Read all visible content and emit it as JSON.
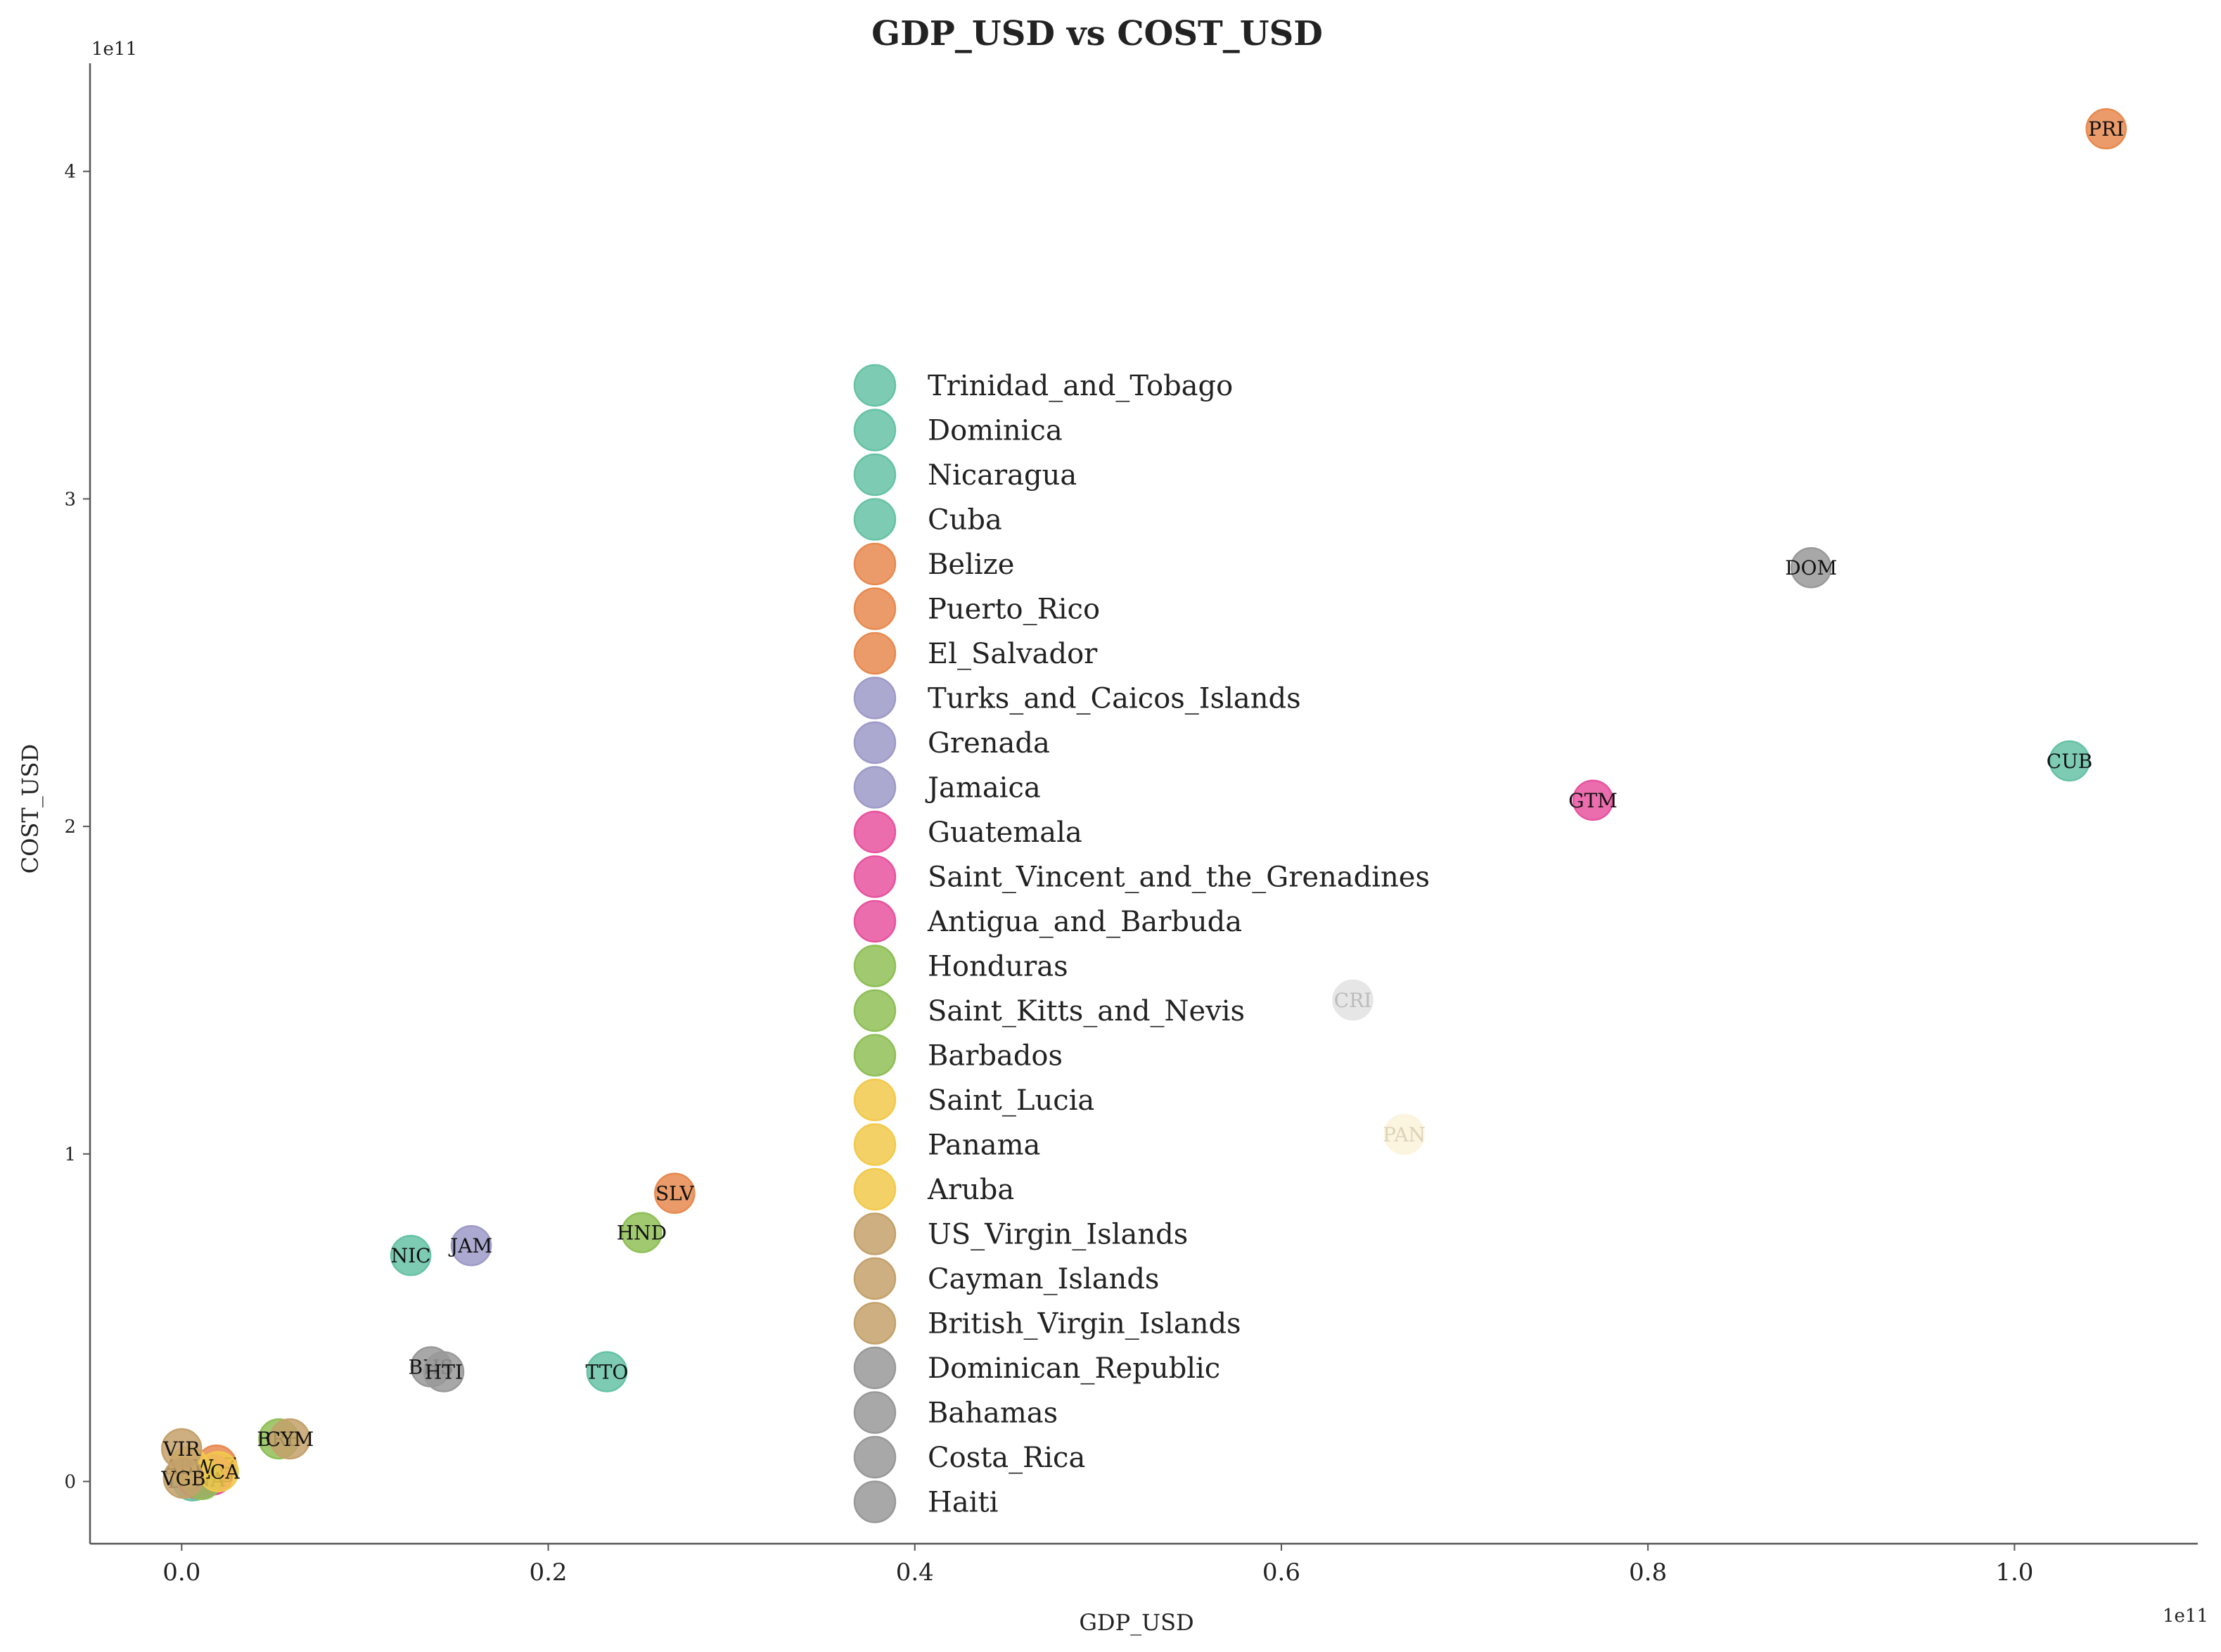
{
  "chart_data": {
    "type": "scatter",
    "title": "GDP_USD vs COST_USD",
    "xlabel": "GDP_USD",
    "ylabel": "COST_USD",
    "x_offset_label": "1e11",
    "y_offset_label": "1e11",
    "xlim": [
      -0.05,
      1.1
    ],
    "ylim": [
      -0.19,
      4.33
    ],
    "xticks": [
      0.0,
      0.2,
      0.4,
      0.6,
      0.8,
      1.0
    ],
    "xtick_labels": [
      "0.0",
      "0.2",
      "0.4",
      "0.6",
      "0.8",
      "1.0"
    ],
    "yticks": [
      0,
      1,
      2,
      3,
      4
    ],
    "ytick_labels": [
      "0",
      "1",
      "2",
      "3",
      "4"
    ],
    "grid": false,
    "legend_position": "center",
    "series": [
      {
        "name": "Trinidad_and_Tobago",
        "code": "TTO",
        "color": "#66c2a5",
        "x": 0.232,
        "y": 0.335
      },
      {
        "name": "Dominica",
        "code": "DMA",
        "color": "#66c2a5",
        "x": 0.006,
        "y": 0.002
      },
      {
        "name": "Nicaragua",
        "code": "NIC",
        "color": "#66c2a5",
        "x": 0.125,
        "y": 0.69
      },
      {
        "name": "Cuba",
        "code": "CUB",
        "color": "#66c2a5",
        "x": 1.03,
        "y": 2.2
      },
      {
        "name": "Belize",
        "code": "BLZ",
        "color": "#e8894f",
        "x": 0.019,
        "y": 0.05
      },
      {
        "name": "Puerto_Rico",
        "code": "PRI",
        "color": "#e8894f",
        "x": 1.05,
        "y": 4.13
      },
      {
        "name": "El_Salvador",
        "code": "SLV",
        "color": "#e8894f",
        "x": 0.269,
        "y": 0.88
      },
      {
        "name": "Turks_and_Caicos_Islands",
        "code": "TCA",
        "color": "#9e9ac8",
        "x": 0.008,
        "y": 0.012
      },
      {
        "name": "Grenada",
        "code": "GRD",
        "color": "#9e9ac8",
        "x": 0.012,
        "y": 0.01
      },
      {
        "name": "Jamaica",
        "code": "JAM",
        "color": "#9e9ac8",
        "x": 0.158,
        "y": 0.72
      },
      {
        "name": "Guatemala",
        "code": "GTM",
        "color": "#e7539f",
        "x": 0.77,
        "y": 2.08
      },
      {
        "name": "Saint_Vincent_and_the_Grenadines",
        "code": "VCT",
        "color": "#e7539f",
        "x": 0.009,
        "y": 0.008
      },
      {
        "name": "Antigua_and_Barbuda",
        "code": "ATG",
        "color": "#e7539f",
        "x": 0.017,
        "y": 0.02
      },
      {
        "name": "Honduras",
        "code": "HND",
        "color": "#8fbf57",
        "x": 0.251,
        "y": 0.76
      },
      {
        "name": "Saint_Kitts_and_Nevis",
        "code": "KNA",
        "color": "#8fbf57",
        "x": 0.011,
        "y": 0.006
      },
      {
        "name": "Barbados",
        "code": "BRB",
        "color": "#8fbf57",
        "x": 0.053,
        "y": 0.13
      },
      {
        "name": "Saint_Lucia",
        "code": "LCA",
        "color": "#f2c94c",
        "x": 0.02,
        "y": 0.03
      },
      {
        "name": "Panama",
        "code": "PAN",
        "color": "#f2c94c",
        "x": 0.667,
        "y": 1.06
      },
      {
        "name": "Aruba",
        "code": "ABW",
        "color": "#f2c94c",
        "x": 0.004,
        "y": 0.045
      },
      {
        "name": "US_Virgin_Islands",
        "code": "VIR",
        "color": "#c4a16b",
        "x": 0.0,
        "y": 0.1
      },
      {
        "name": "Cayman_Islands",
        "code": "CYM",
        "color": "#c4a16b",
        "x": 0.059,
        "y": 0.13
      },
      {
        "name": "British_Virgin_Islands",
        "code": "VGB",
        "color": "#c4a16b",
        "x": 0.001,
        "y": 0.01
      },
      {
        "name": "Dominican_Republic",
        "code": "DOM",
        "color": "#999999",
        "x": 0.889,
        "y": 2.79
      },
      {
        "name": "Bahamas",
        "code": "BHS",
        "color": "#999999",
        "x": 0.136,
        "y": 0.35
      },
      {
        "name": "Costa_Rica",
        "code": "CRI",
        "color": "#999999",
        "x": 0.639,
        "y": 1.47
      },
      {
        "name": "Haiti",
        "code": "HTI",
        "color": "#999999",
        "x": 0.143,
        "y": 0.335
      }
    ]
  }
}
